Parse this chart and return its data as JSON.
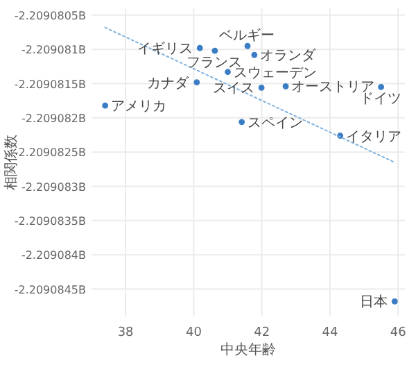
{
  "chart_data": {
    "type": "scatter",
    "xlabel": "中央年齢",
    "ylabel": "相関係数",
    "xlim": [
      37,
      46.2
    ],
    "ylim": [
      -2.2090849,
      -2.2090804
    ],
    "xticks": [
      38,
      40,
      42,
      44,
      46
    ],
    "yticks": [
      {
        "value": -2.2090805,
        "label": "-2.2090805B"
      },
      {
        "value": -2.209081,
        "label": "-2.209081B"
      },
      {
        "value": -2.2090815,
        "label": "-2.2090815B"
      },
      {
        "value": -2.209082,
        "label": "-2.209082B"
      },
      {
        "value": -2.2090825,
        "label": "-2.2090825B"
      },
      {
        "value": -2.209083,
        "label": "-2.209083B"
      },
      {
        "value": -2.2090835,
        "label": "-2.2090835B"
      },
      {
        "value": -2.209084,
        "label": "-2.209084B"
      },
      {
        "value": -2.2090845,
        "label": "-2.2090845B"
      }
    ],
    "grid": true,
    "series": [
      {
        "type": "scatter",
        "marker": "circle",
        "color": "#3b7dc4",
        "x": [
          37.4,
          40.18,
          40.62,
          41.58,
          41.78,
          41.0,
          40.09,
          41.99,
          42.7,
          45.5,
          41.41,
          44.3,
          45.9
        ],
        "values": [
          -2.20908182,
          -2.20908098,
          -2.20908102,
          -2.20908095,
          -2.20908108,
          -2.20908133,
          -2.20908148,
          -2.20908156,
          -2.20908154,
          -2.20908155,
          -2.20908206,
          -2.20908226,
          -2.20908468
        ]
      },
      {
        "type": "line",
        "color": "#7fb2df",
        "line_style": "dotted",
        "x": [
          37.4,
          45.9
        ],
        "values": [
          -2.20908068,
          -2.20908265
        ]
      }
    ],
    "annotations": [
      {
        "text": "アメリカ",
        "x": 37.4,
        "y": -2.20908182
      },
      {
        "text": "イギリス",
        "x": 40.18,
        "y": -2.20908098
      },
      {
        "text": "フランス",
        "x": 40.62,
        "y": -2.20908102
      },
      {
        "text": "ベルギー",
        "x": 41.58,
        "y": -2.20908095
      },
      {
        "text": "オランダ",
        "x": 41.78,
        "y": -2.20908108
      },
      {
        "text": "スウェーデン",
        "x": 41.0,
        "y": -2.20908133
      },
      {
        "text": "カナダ",
        "x": 40.09,
        "y": -2.20908148
      },
      {
        "text": "スイス",
        "x": 41.99,
        "y": -2.20908156
      },
      {
        "text": "オーストリア",
        "x": 42.7,
        "y": -2.20908154
      },
      {
        "text": "ドイツ",
        "x": 45.5,
        "y": -2.20908155
      },
      {
        "text": "スペイン",
        "x": 41.41,
        "y": -2.20908206
      },
      {
        "text": "イタリア",
        "x": 44.3,
        "y": -2.20908226
      },
      {
        "text": "日本",
        "x": 45.9,
        "y": -2.20908468
      }
    ]
  }
}
